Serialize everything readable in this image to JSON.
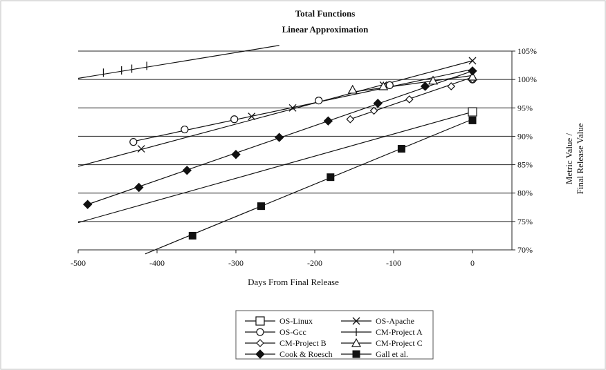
{
  "chart_data": {
    "type": "scatter",
    "title": "Total Functions",
    "subtitle": "Linear Approximation",
    "xlabel": "Days From Final Release",
    "ylabel": "Metric Value / Final Release Value",
    "xlim": [
      -500,
      50
    ],
    "ylim": [
      70,
      105
    ],
    "x_ticks": [
      "-500",
      "-400",
      "-300",
      "-200",
      "-100",
      "0"
    ],
    "y_ticks": [
      "70%",
      "75%",
      "80%",
      "85%",
      "90%",
      "95%",
      "100%",
      "105%"
    ],
    "grid": "horizontal",
    "legend_position": "bottom",
    "series": [
      {
        "name": "OS-Linux",
        "marker": "square-open",
        "points": [
          [
            0,
            94.3
          ]
        ],
        "fit": [
          [
            -500,
            74.8
          ],
          [
            0,
            94.3
          ]
        ]
      },
      {
        "name": "OS-Apache",
        "marker": "x",
        "points": [
          [
            -420,
            87.8
          ],
          [
            -280,
            93.5
          ],
          [
            -228,
            95.0
          ],
          [
            -113,
            99.0
          ],
          [
            0,
            103.3
          ]
        ],
        "fit": [
          [
            -500,
            84.7
          ],
          [
            0,
            103.3
          ]
        ]
      },
      {
        "name": "OS-Gcc",
        "marker": "circle-open",
        "points": [
          [
            -430,
            89.0
          ],
          [
            -365,
            91.2
          ],
          [
            -302,
            93.0
          ],
          [
            -195,
            96.3
          ],
          [
            -105,
            99.0
          ],
          [
            0,
            100.0
          ]
        ],
        "fit": [
          [
            -430,
            89.1
          ],
          [
            0,
            101.8
          ]
        ]
      },
      {
        "name": "CM-Project A",
        "marker": "plus",
        "points": [
          [
            -468,
            101.2
          ],
          [
            -445,
            101.6
          ],
          [
            -432,
            101.9
          ],
          [
            -413,
            102.4
          ]
        ],
        "fit": [
          [
            -500,
            100.2
          ],
          [
            -245,
            106.0
          ]
        ]
      },
      {
        "name": "CM-Project B",
        "marker": "diamond-open",
        "points": [
          [
            -155,
            93.0
          ],
          [
            -125,
            94.5
          ],
          [
            -80,
            96.5
          ],
          [
            -27,
            98.8
          ],
          [
            0,
            100.0
          ]
        ],
        "fit": [
          [
            -155,
            93.0
          ],
          [
            0,
            100.4
          ]
        ]
      },
      {
        "name": "CM-Project C",
        "marker": "triangle-open",
        "points": [
          [
            -152,
            98.2
          ],
          [
            -113,
            98.8
          ],
          [
            -50,
            99.8
          ],
          [
            0,
            100.5
          ]
        ],
        "fit": [
          [
            -152,
            97.8
          ],
          [
            0,
            100.7
          ]
        ]
      },
      {
        "name": "Cook & Roesch",
        "marker": "diamond-filled",
        "points": [
          [
            -488,
            78.0
          ],
          [
            -423,
            81.0
          ],
          [
            -362,
            84.0
          ],
          [
            -300,
            86.8
          ],
          [
            -245,
            89.8
          ],
          [
            -183,
            92.7
          ],
          [
            -120,
            95.8
          ],
          [
            -60,
            98.8
          ],
          [
            0,
            101.5
          ]
        ],
        "fit": [
          [
            -488,
            78.0
          ],
          [
            0,
            101.5
          ]
        ]
      },
      {
        "name": "Gall et al.",
        "marker": "square-filled",
        "points": [
          [
            -355,
            72.5
          ],
          [
            -268,
            77.7
          ],
          [
            -180,
            82.8
          ],
          [
            -90,
            87.8
          ],
          [
            0,
            92.8
          ]
        ],
        "fit": [
          [
            -415,
            69.3
          ],
          [
            0,
            93.0
          ]
        ]
      }
    ]
  }
}
